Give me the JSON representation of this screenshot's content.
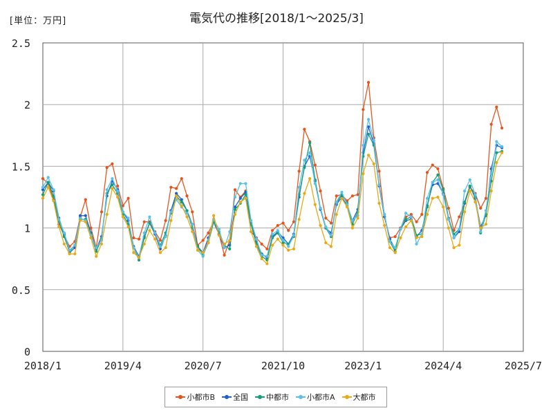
{
  "title": "電気代の推移[2018/1～2025/3]",
  "unit_label": "[単位：万円]",
  "chart_data": {
    "type": "line",
    "title": "電気代の推移[2018/1～2025/3]",
    "ylabel": "[単位：万円]",
    "xlabel": "",
    "ylim": [
      0,
      2.5
    ],
    "yticks": [
      "0",
      "0.5",
      "1",
      "1.5",
      "2",
      "2.5"
    ],
    "xlim": [
      "2018/1",
      "2025/7"
    ],
    "xticks": [
      "2018/1",
      "2019/4",
      "2020/7",
      "2021/10",
      "2023/1",
      "2024/4",
      "2025/7"
    ],
    "grid": true,
    "legend_position": "bottom",
    "x_start": "2018/1",
    "series": [
      {
        "name": "小都市B",
        "color": "#e8531c",
        "values": [
          1.4,
          1.36,
          1.23,
          1.03,
          0.94,
          0.85,
          0.89,
          1.09,
          1.23,
          1.0,
          0.84,
          1.13,
          1.49,
          1.52,
          1.34,
          1.18,
          1.24,
          0.92,
          0.91,
          1.05,
          1.05,
          0.97,
          0.9,
          1.06,
          1.33,
          1.32,
          1.4,
          1.26,
          1.13,
          0.86,
          0.9,
          0.96,
          1.05,
          0.95,
          0.78,
          0.9,
          1.31,
          1.25,
          1.3,
          0.97,
          0.92,
          0.87,
          0.83,
          0.98,
          1.02,
          1.04,
          0.98,
          1.05,
          1.46,
          1.8,
          1.7,
          1.51,
          1.3,
          1.08,
          1.04,
          1.26,
          1.27,
          1.22,
          1.26,
          1.27,
          1.96,
          2.18,
          1.73,
          1.46,
          1.09,
          0.92,
          0.93,
          1.0,
          1.09,
          1.11,
          1.05,
          1.11,
          1.45,
          1.51,
          1.48,
          1.32,
          1.16,
          0.98,
          1.09,
          1.2,
          1.33,
          1.28,
          1.16,
          1.24,
          1.84,
          1.98,
          1.81
        ]
      },
      {
        "name": "全国",
        "color": "#1f5fd1",
        "values": [
          1.31,
          1.37,
          1.3,
          1.08,
          0.95,
          0.8,
          0.84,
          1.1,
          1.1,
          0.96,
          0.83,
          0.93,
          1.26,
          1.38,
          1.31,
          1.13,
          1.06,
          0.85,
          0.77,
          0.93,
          1.04,
          0.95,
          0.83,
          0.94,
          1.14,
          1.28,
          1.23,
          1.14,
          1.03,
          0.85,
          0.8,
          0.92,
          1.05,
          0.95,
          0.84,
          0.86,
          1.17,
          1.24,
          1.29,
          1.04,
          0.89,
          0.79,
          0.76,
          0.93,
          0.97,
          0.92,
          0.87,
          0.95,
          1.25,
          1.5,
          1.58,
          1.38,
          1.15,
          1.0,
          0.96,
          1.19,
          1.25,
          1.18,
          1.06,
          1.15,
          1.61,
          1.82,
          1.68,
          1.34,
          1.09,
          0.91,
          0.83,
          0.99,
          1.06,
          1.07,
          0.93,
          0.98,
          1.18,
          1.35,
          1.36,
          1.28,
          1.07,
          0.92,
          0.97,
          1.2,
          1.34,
          1.24,
          1.01,
          1.1,
          1.48,
          1.67,
          1.65
        ]
      },
      {
        "name": "中都市",
        "color": "#12a079",
        "values": [
          1.27,
          1.37,
          1.26,
          1.05,
          0.93,
          0.81,
          0.86,
          1.07,
          1.07,
          0.95,
          0.81,
          0.91,
          1.28,
          1.35,
          1.28,
          1.11,
          1.03,
          0.84,
          0.74,
          0.92,
          1.04,
          0.96,
          0.86,
          0.96,
          1.12,
          1.26,
          1.21,
          1.14,
          1.0,
          0.85,
          0.78,
          0.88,
          1.05,
          0.97,
          0.86,
          0.83,
          1.15,
          1.2,
          1.27,
          1.03,
          0.87,
          0.77,
          0.74,
          0.92,
          0.96,
          0.88,
          0.87,
          0.93,
          1.27,
          1.49,
          1.69,
          1.39,
          1.16,
          1.0,
          0.93,
          1.2,
          1.27,
          1.2,
          1.03,
          1.13,
          1.58,
          1.76,
          1.67,
          1.35,
          1.11,
          0.89,
          0.81,
          0.99,
          1.07,
          1.09,
          0.94,
          0.95,
          1.17,
          1.37,
          1.43,
          1.31,
          1.08,
          0.95,
          0.99,
          1.21,
          1.34,
          1.25,
          0.96,
          1.11,
          1.38,
          1.61,
          1.62
        ]
      },
      {
        "name": "小都市A",
        "color": "#58c0ea",
        "values": [
          1.33,
          1.41,
          1.31,
          1.07,
          0.96,
          0.82,
          0.86,
          1.08,
          1.06,
          0.94,
          0.84,
          0.9,
          1.31,
          1.4,
          1.3,
          1.13,
          1.08,
          0.84,
          0.76,
          0.96,
          1.09,
          0.96,
          0.85,
          0.93,
          1.13,
          1.23,
          1.17,
          1.12,
          1.03,
          0.82,
          0.77,
          0.9,
          1.07,
          0.99,
          0.84,
          0.97,
          1.25,
          1.36,
          1.36,
          1.06,
          0.91,
          0.78,
          0.77,
          0.95,
          0.98,
          0.9,
          0.85,
          0.94,
          1.33,
          1.55,
          1.61,
          1.36,
          1.16,
          1.01,
          0.94,
          1.21,
          1.29,
          1.19,
          1.06,
          1.1,
          1.67,
          1.88,
          1.71,
          1.35,
          1.11,
          0.89,
          0.84,
          0.99,
          1.12,
          1.09,
          0.87,
          0.95,
          1.24,
          1.37,
          1.39,
          1.27,
          1.07,
          0.92,
          0.99,
          1.3,
          1.39,
          1.27,
          0.97,
          1.14,
          1.44,
          1.7,
          1.66
        ]
      },
      {
        "name": "大都市",
        "color": "#e9a912",
        "values": [
          1.24,
          1.33,
          1.22,
          1.01,
          0.87,
          0.79,
          0.79,
          1.06,
          1.05,
          0.92,
          0.77,
          0.87,
          1.11,
          1.32,
          1.25,
          1.09,
          1.01,
          0.8,
          0.76,
          0.87,
          0.98,
          0.91,
          0.8,
          0.84,
          1.06,
          1.26,
          1.18,
          1.09,
          0.97,
          0.82,
          0.8,
          0.88,
          1.1,
          0.94,
          0.87,
          0.9,
          1.11,
          1.21,
          1.24,
          0.97,
          0.85,
          0.75,
          0.71,
          0.86,
          0.91,
          0.86,
          0.82,
          0.83,
          1.07,
          1.28,
          1.4,
          1.19,
          1.02,
          0.88,
          0.85,
          1.11,
          1.24,
          1.17,
          1.0,
          1.08,
          1.44,
          1.59,
          1.52,
          1.2,
          1.02,
          0.84,
          0.8,
          0.92,
          1.01,
          1.06,
          0.92,
          0.93,
          1.11,
          1.24,
          1.25,
          1.17,
          1.0,
          0.84,
          0.86,
          1.13,
          1.3,
          1.21,
          1.0,
          1.03,
          1.3,
          1.53,
          1.61
        ]
      }
    ]
  }
}
